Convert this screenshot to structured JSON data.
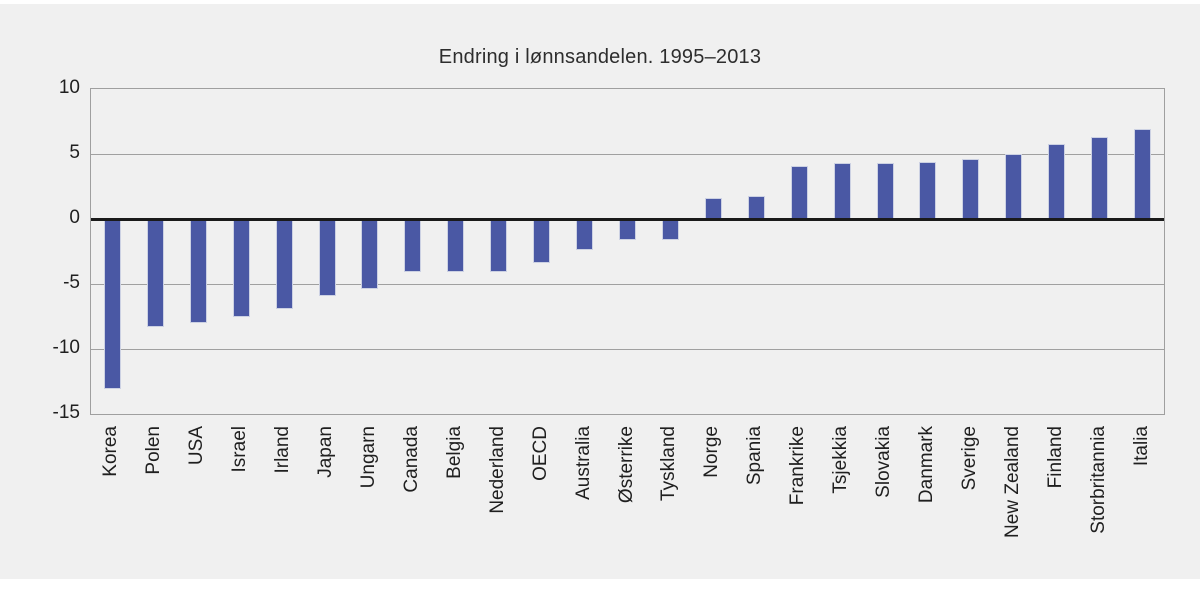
{
  "figure": {
    "background_color": "#f0f0f0",
    "page_background_color": "#ffffff"
  },
  "chart_data": {
    "type": "bar",
    "title": "Endring i lønnsandelen. 1995–2013",
    "xlabel": "",
    "ylabel": "",
    "categories": [
      "Korea",
      "Polen",
      "USA",
      "Israel",
      "Irland",
      "Japan",
      "Ungarn",
      "Canada",
      "Belgia",
      "Nederland",
      "OECD",
      "Australia",
      "Østerrike",
      "Tyskland",
      "Norge",
      "Spania",
      "Frankrike",
      "Tsjekkia",
      "Slovakia",
      "Danmark",
      "Sverige",
      "New Zealand",
      "Finland",
      "Storbritannia",
      "Italia"
    ],
    "values": [
      -13.1,
      -8.3,
      -8.0,
      -7.5,
      -6.9,
      -5.9,
      -5.4,
      -4.1,
      -4.1,
      -4.1,
      -3.4,
      -2.4,
      -1.6,
      -1.6,
      1.6,
      1.8,
      4.1,
      4.3,
      4.3,
      4.4,
      4.6,
      5.0,
      5.8,
      6.3,
      6.9
    ],
    "ylim": [
      -15,
      10
    ],
    "yticks": [
      10,
      5,
      0,
      -5,
      -10,
      -15
    ],
    "grid": true,
    "legend": "none",
    "bar_color": "#4a58a4",
    "bar_edge_color": "#ccd1e3",
    "gridline_color": "#a0a0a0",
    "zero_line_color": "#1a1a1a",
    "plot_background": "#f0f0f0",
    "text_color": "#1f1f1f"
  }
}
